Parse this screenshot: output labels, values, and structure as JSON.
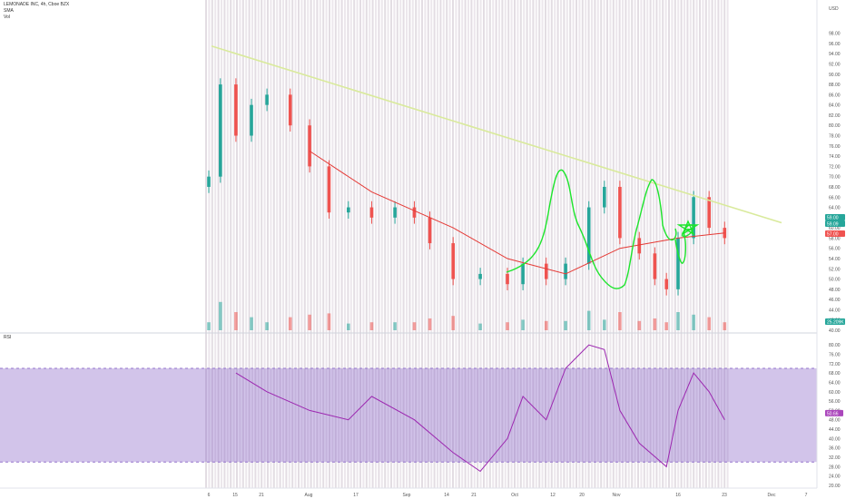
{
  "legend": {
    "symbol_line": "LEMONADE INC, 4h, Cboe BZX",
    "sma_label": "SMA",
    "vol_label": "Vol",
    "rsi_label": "RSI"
  },
  "price_axis": {
    "currency": "USD",
    "ticks": [
      "98.00",
      "96.00",
      "94.00",
      "92.00",
      "90.00",
      "88.00",
      "86.00",
      "84.00",
      "82.00",
      "80.00",
      "78.00",
      "76.00",
      "74.00",
      "72.00",
      "70.00",
      "68.00",
      "66.00",
      "64.00",
      "62.00",
      "60.00",
      "58.00",
      "56.00",
      "54.00",
      "52.00",
      "50.00",
      "48.00",
      "46.00",
      "44.00",
      "42.00",
      "40.00"
    ],
    "badges": [
      {
        "text": "59.00",
        "color": "#26a69a"
      },
      {
        "text": "59.09",
        "color": "#26a69a"
      },
      {
        "text": "57.00",
        "color": "#ef5350"
      },
      {
        "text": "25.209K",
        "color": "#26a69a"
      }
    ]
  },
  "rsi_axis": {
    "ticks": [
      "80.00",
      "76.00",
      "72.00",
      "68.00",
      "64.00",
      "60.00",
      "56.00",
      "52.00",
      "48.00",
      "44.00",
      "40.00",
      "36.00",
      "32.00",
      "28.00",
      "24.00",
      "20.00"
    ],
    "badge": {
      "text": "50.66",
      "color": "#ab47bc"
    }
  },
  "time_axis": [
    "6",
    "15",
    "21",
    "Aug",
    "17",
    "Sep",
    "14",
    "21",
    "Oct",
    "12",
    "20",
    "Nov",
    "16",
    "23",
    "Dec",
    "7"
  ],
  "colors": {
    "up": "#26a69a",
    "down": "#ef5350",
    "sma": "#e53935",
    "trendline": "#d9ea9c",
    "drawing": "#1de52c",
    "rsi_line": "#9c27b0",
    "rsi_band": "#7e57c2"
  },
  "chart_data": [
    {
      "type": "candlestick",
      "series_name": "LEMONADE INC, 4h, Cboe BZX",
      "ylim": [
        40,
        99
      ],
      "x": [
        "Jul 6",
        "Jul 9",
        "Jul 13",
        "Jul 17",
        "Jul 21",
        "Jul 27",
        "Aug 1",
        "Aug 6",
        "Aug 11",
        "Aug 17",
        "Aug 23",
        "Aug 28",
        "Sep 1",
        "Sep 7",
        "Sep 14",
        "Sep 21",
        "Sep 25",
        "Oct 1",
        "Oct 6",
        "Oct 12",
        "Oct 16",
        "Oct 20",
        "Oct 25",
        "Oct 29",
        "Nov 1",
        "Nov 4",
        "Nov 8",
        "Nov 12",
        "Nov 16"
      ],
      "close": [
        70,
        88,
        78,
        84,
        86,
        80,
        72,
        63,
        64,
        62,
        64,
        62,
        57,
        50,
        51,
        49,
        53,
        50,
        53,
        64,
        68,
        58,
        55,
        50,
        48,
        58,
        66,
        60,
        58
      ],
      "sma": {
        "name": "SMA",
        "x": [
          "Aug 1",
          "Aug 17",
          "Sep 7",
          "Sep 21",
          "Oct 6",
          "Oct 20",
          "Nov 4",
          "Nov 16"
        ],
        "values": [
          75,
          67,
          60,
          54,
          51,
          56,
          58,
          59
        ]
      },
      "trendline": {
        "x": [
          "Jul 6",
          "Nov 30"
        ],
        "values": [
          95.5,
          61
        ]
      }
    },
    {
      "type": "line",
      "series_name": "RSI",
      "ylim": [
        20,
        82
      ],
      "x": [
        "Jul 13",
        "Jul 21",
        "Aug 1",
        "Aug 11",
        "Aug 17",
        "Aug 28",
        "Sep 7",
        "Sep 14",
        "Sep 21",
        "Sep 25",
        "Oct 1",
        "Oct 6",
        "Oct 12",
        "Oct 16",
        "Oct 20",
        "Oct 25",
        "Nov 1",
        "Nov 4",
        "Nov 8",
        "Nov 12",
        "Nov 16"
      ],
      "values": [
        68,
        60,
        52,
        48,
        58,
        48,
        34,
        26,
        40,
        58,
        48,
        70,
        80,
        78,
        52,
        38,
        28,
        52,
        68,
        60,
        48
      ],
      "upper_band": 70,
      "lower_band": 30
    }
  ]
}
